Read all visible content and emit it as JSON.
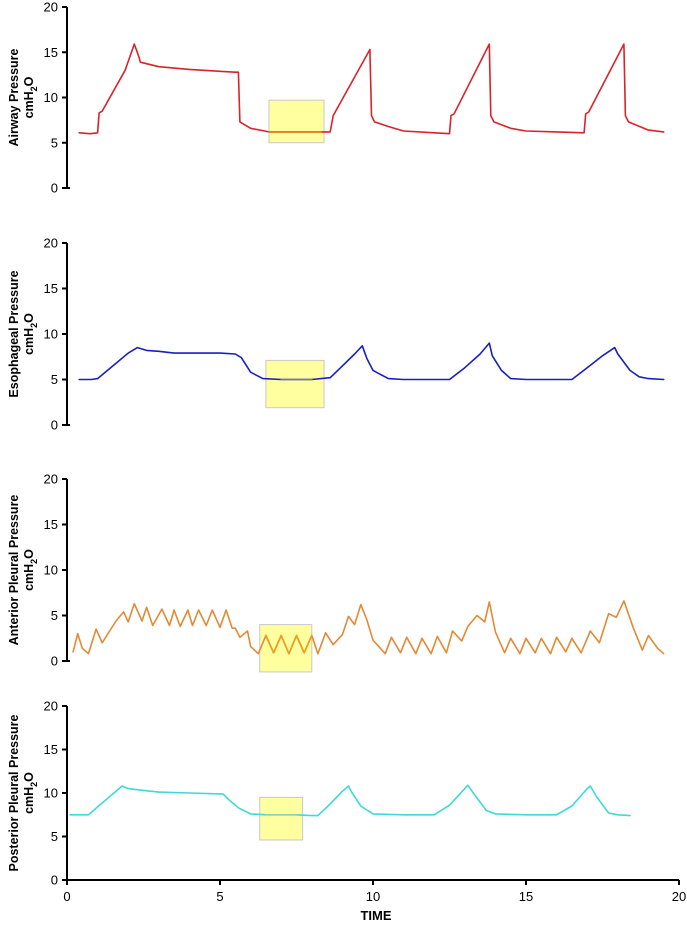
{
  "chart_data": {
    "type": "line",
    "layout": "4 vertically stacked panels sharing the x axis",
    "xlabel": "TIME",
    "xlim": [
      0,
      20
    ],
    "xticks": [
      0,
      5,
      10,
      15,
      20
    ],
    "x_tick_labels": [
      "0",
      "5",
      "10",
      "15",
      "20"
    ],
    "grid": false,
    "legend": "none",
    "panels": [
      {
        "ylabel_line1": "Airway Pressure",
        "ylabel_unit": "cmH",
        "ylabel_sub": "2",
        "ylabel_tail": "O",
        "ylim": [
          0,
          20
        ],
        "yticks": [
          0,
          5,
          10,
          15,
          20
        ],
        "y_tick_labels": [
          "0",
          "5",
          "10",
          "15",
          "20"
        ],
        "color": "#d9232a",
        "highlight": {
          "x_start": 6.6,
          "x_end": 8.4,
          "y_start": 5,
          "y_end": 9.7,
          "trace_color": "#e8821e"
        },
        "x": [
          0.4,
          0.75,
          1.0,
          1.05,
          1.15,
          1.9,
          2.2,
          2.35,
          2.4,
          3.0,
          4.0,
          5.0,
          5.5,
          5.6,
          5.65,
          6.0,
          6.6,
          8.3,
          8.6,
          8.7,
          9.9,
          9.95,
          10.05,
          10.5,
          11.0,
          12.0,
          12.5,
          12.55,
          12.65,
          13.8,
          13.85,
          13.95,
          14.5,
          15.0,
          16.0,
          16.9,
          16.95,
          17.05,
          18.2,
          18.25,
          18.35,
          19.0,
          19.5
        ],
        "y": [
          6.1,
          6.0,
          6.1,
          8.3,
          8.5,
          13.0,
          15.9,
          14.5,
          13.9,
          13.4,
          13.1,
          12.9,
          12.8,
          12.8,
          7.3,
          6.6,
          6.2,
          6.2,
          6.2,
          8.0,
          15.3,
          8.0,
          7.3,
          6.8,
          6.3,
          6.1,
          6.0,
          8.0,
          8.2,
          15.9,
          8.0,
          7.3,
          6.6,
          6.3,
          6.2,
          6.1,
          8.2,
          8.4,
          15.9,
          8.0,
          7.3,
          6.4,
          6.2
        ]
      },
      {
        "ylabel_line1": "Esophageal Pressure",
        "ylabel_unit": "cmH",
        "ylabel_sub": "2",
        "ylabel_tail": "O",
        "ylim": [
          0,
          20
        ],
        "yticks": [
          0,
          5,
          10,
          15,
          20
        ],
        "y_tick_labels": [
          "0",
          "5",
          "10",
          "15",
          "20"
        ],
        "color": "#1a1fbf",
        "highlight": {
          "x_start": 6.5,
          "x_end": 8.4,
          "y_start": 1.9,
          "y_end": 7.1,
          "trace_color": "#7a7a8c"
        },
        "x": [
          0.4,
          0.8,
          1.0,
          1.5,
          2.0,
          2.3,
          2.6,
          3.0,
          3.5,
          4.0,
          4.5,
          5.0,
          5.5,
          5.7,
          6.0,
          6.4,
          7.0,
          8.0,
          8.6,
          9.0,
          9.4,
          9.65,
          9.8,
          10.0,
          10.5,
          11.0,
          12.0,
          12.5,
          13.0,
          13.5,
          13.8,
          13.9,
          14.2,
          14.5,
          15.0,
          16.0,
          16.5,
          17.0,
          17.5,
          17.9,
          18.0,
          18.4,
          18.7,
          19.0,
          19.5
        ],
        "y": [
          5.0,
          5.0,
          5.1,
          6.5,
          7.9,
          8.5,
          8.2,
          8.1,
          7.9,
          7.9,
          7.9,
          7.9,
          7.8,
          7.4,
          5.8,
          5.1,
          5.0,
          5.0,
          5.2,
          6.5,
          7.8,
          8.7,
          7.3,
          6.0,
          5.1,
          5.0,
          5.0,
          5.0,
          6.3,
          7.8,
          9.0,
          7.6,
          6.0,
          5.1,
          5.0,
          5.0,
          5.0,
          6.3,
          7.6,
          8.5,
          7.8,
          6.0,
          5.3,
          5.1,
          5.0
        ]
      },
      {
        "ylabel_line1": "Anterior Pleural Pressure",
        "ylabel_unit": "cmH",
        "ylabel_sub": "2",
        "ylabel_tail": "O",
        "ylim": [
          0,
          20
        ],
        "yticks": [
          0,
          5,
          10,
          15,
          20
        ],
        "y_tick_labels": [
          "0",
          "5",
          "10",
          "15",
          "20"
        ],
        "color": "#e28a35",
        "highlight": {
          "x_start": 6.3,
          "x_end": 8.0,
          "y_start": -1.2,
          "y_end": 4.0,
          "trace_color": "#e8a020"
        },
        "x": [
          0.2,
          0.35,
          0.5,
          0.7,
          0.95,
          1.15,
          1.3,
          1.6,
          1.85,
          2.0,
          2.2,
          2.45,
          2.6,
          2.8,
          3.1,
          3.35,
          3.5,
          3.7,
          3.95,
          4.1,
          4.3,
          4.55,
          4.75,
          5.0,
          5.2,
          5.4,
          5.5,
          5.65,
          5.9,
          6.0,
          6.25,
          6.5,
          6.75,
          7.0,
          7.25,
          7.5,
          7.75,
          8.0,
          8.2,
          8.45,
          8.7,
          9.0,
          9.2,
          9.4,
          9.6,
          9.8,
          10.0,
          10.4,
          10.6,
          10.9,
          11.1,
          11.4,
          11.6,
          11.9,
          12.1,
          12.4,
          12.6,
          12.9,
          13.1,
          13.4,
          13.65,
          13.8,
          14.0,
          14.3,
          14.5,
          14.8,
          15.0,
          15.3,
          15.5,
          15.8,
          16.0,
          16.3,
          16.5,
          16.8,
          17.1,
          17.4,
          17.7,
          17.95,
          18.2,
          18.5,
          18.8,
          19.0,
          19.3,
          19.5
        ],
        "y": [
          1.0,
          3.0,
          1.4,
          0.8,
          3.5,
          2.0,
          2.8,
          4.4,
          5.4,
          4.3,
          6.3,
          4.4,
          5.9,
          3.9,
          5.7,
          3.9,
          5.6,
          3.8,
          5.6,
          3.9,
          5.6,
          3.9,
          5.6,
          3.7,
          5.6,
          3.6,
          3.6,
          2.6,
          3.3,
          1.6,
          0.8,
          2.8,
          0.9,
          2.8,
          0.8,
          2.8,
          0.9,
          2.8,
          0.8,
          3.1,
          1.8,
          2.9,
          4.9,
          4.0,
          6.2,
          4.5,
          2.3,
          0.8,
          2.6,
          0.9,
          2.6,
          0.8,
          2.5,
          0.8,
          2.7,
          0.9,
          3.3,
          2.2,
          3.8,
          5.0,
          4.3,
          6.5,
          3.2,
          0.9,
          2.5,
          0.8,
          2.5,
          0.9,
          2.5,
          0.8,
          2.6,
          1.0,
          2.5,
          0.9,
          3.3,
          2.0,
          5.2,
          4.8,
          6.6,
          3.7,
          1.2,
          2.8,
          1.4,
          0.8
        ],
        "xlim_clip": [
          0,
          20
        ]
      },
      {
        "ylabel_line1": "Posterior Pleural Pressure",
        "ylabel_unit": "cmH",
        "ylabel_sub": "2",
        "ylabel_tail": "O",
        "ylim": [
          0,
          20
        ],
        "yticks": [
          0,
          5,
          10,
          15,
          20
        ],
        "y_tick_labels": [
          "0",
          "5",
          "10",
          "15",
          "20"
        ],
        "color": "#3fd9d6",
        "highlight": {
          "x_start": 6.3,
          "x_end": 7.7,
          "y_start": 4.6,
          "y_end": 9.5,
          "trace_color": "#9ccfa9"
        },
        "x": [
          0.1,
          0.7,
          1.0,
          1.5,
          1.8,
          2.0,
          2.5,
          3.0,
          4.0,
          5.0,
          5.1,
          5.3,
          5.6,
          6.0,
          6.5,
          7.5,
          8.0,
          8.2,
          8.5,
          9.0,
          9.2,
          9.3,
          9.6,
          10.0,
          11.0,
          12.0,
          12.5,
          13.0,
          13.1,
          13.3,
          13.7,
          14.0,
          15.0,
          16.0,
          16.5,
          17.0,
          17.1,
          17.3,
          17.7,
          18.0,
          18.4
        ],
        "y": [
          7.5,
          7.5,
          8.4,
          9.9,
          10.8,
          10.5,
          10.3,
          10.1,
          10.0,
          9.9,
          9.9,
          9.2,
          8.3,
          7.6,
          7.5,
          7.5,
          7.4,
          7.4,
          8.4,
          10.2,
          10.8,
          10.1,
          8.5,
          7.6,
          7.5,
          7.5,
          8.6,
          10.5,
          10.9,
          9.9,
          8.0,
          7.6,
          7.5,
          7.5,
          8.5,
          10.5,
          10.8,
          9.6,
          7.7,
          7.5,
          7.4
        ]
      }
    ]
  }
}
